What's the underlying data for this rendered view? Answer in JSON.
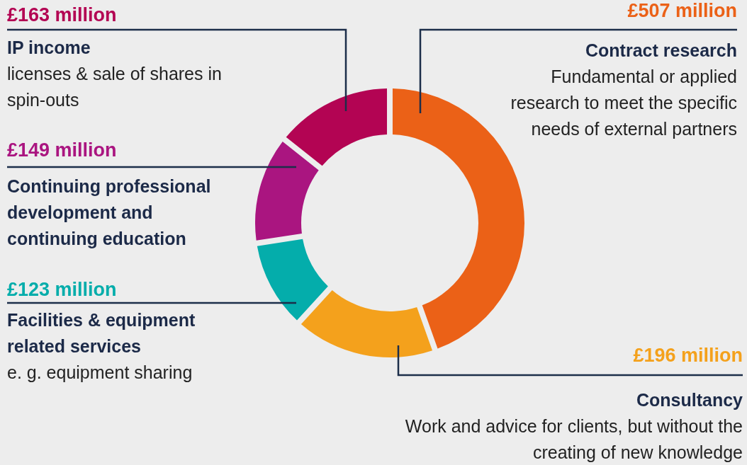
{
  "chart_data": {
    "type": "donut",
    "categories": [
      "Contract research",
      "Consultancy",
      "Facilities & equipment related services",
      "Continuing professional development and continuing education",
      "IP income"
    ],
    "values": [
      507,
      196,
      123,
      149,
      163
    ],
    "colors": [
      "#eb6117",
      "#f4a11c",
      "#04adab",
      "#aa1580",
      "#b30453"
    ],
    "value_labels": [
      "£507 million",
      "£196 million",
      "£123 million",
      "£149 million",
      "£163 million"
    ],
    "annotations": [
      {
        "text": "Fundamental or applied research to meet the specific needs of external partners",
        "x": "Contract research"
      },
      {
        "text": "Work and advice for clients, but without the creating of new knowledge",
        "x": "Consultancy"
      },
      {
        "text": "e. g. equipment sharing",
        "x": "Facilities & equipment related services"
      },
      {
        "text": "licenses & sale of shares in spin-outs",
        "x": "IP income"
      }
    ]
  }
}
